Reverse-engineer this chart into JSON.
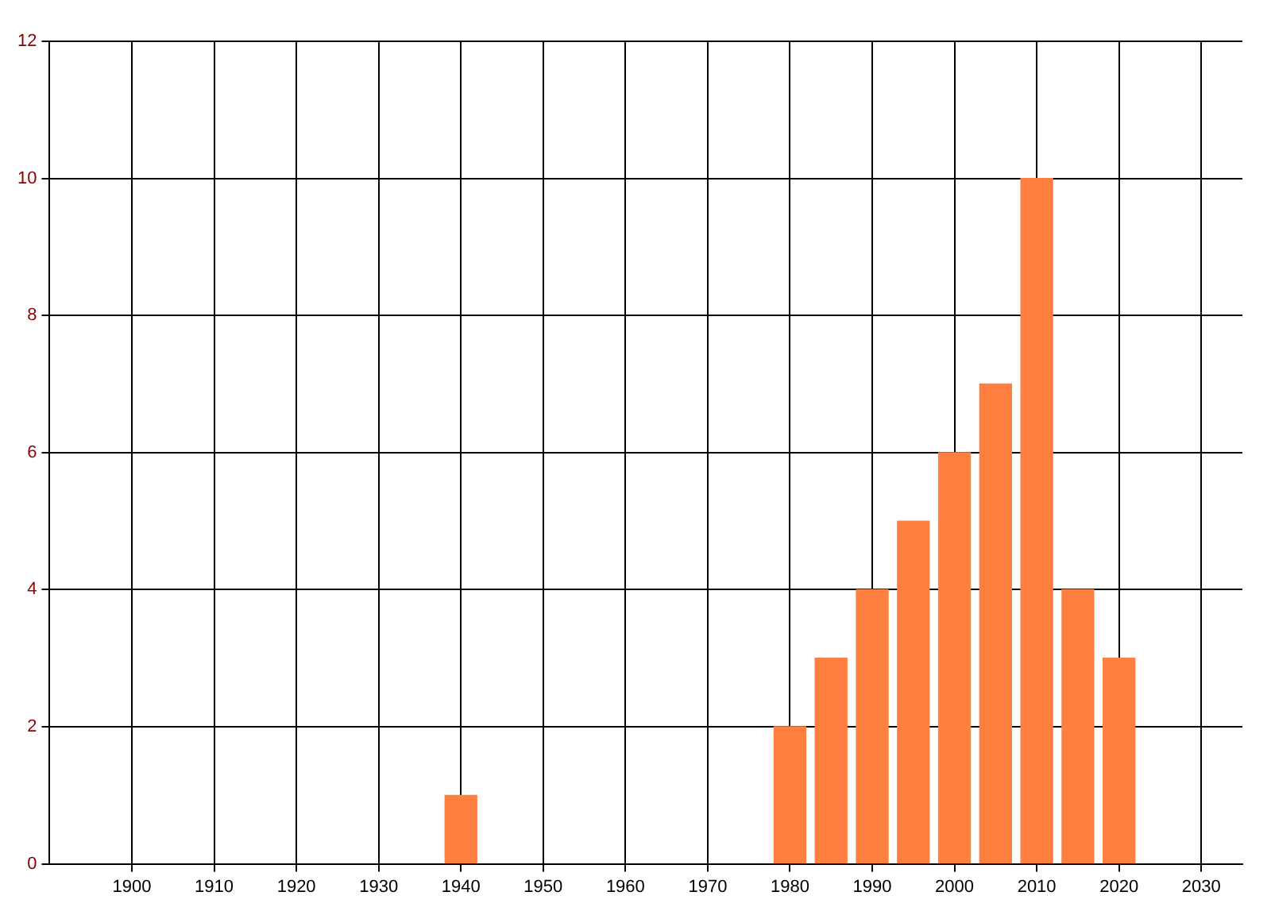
{
  "chart_data": {
    "type": "bar",
    "x": [
      1940,
      1980,
      1985,
      1990,
      1995,
      2000,
      2005,
      2010,
      2015,
      2020
    ],
    "values": [
      1,
      2,
      3,
      4,
      5,
      6,
      7,
      10,
      4,
      3
    ],
    "color": "#ff7f40",
    "xlim": [
      1890,
      2035
    ],
    "xticks": [
      1900,
      1910,
      1920,
      1930,
      1940,
      1950,
      1960,
      1970,
      1980,
      1990,
      2000,
      2010,
      2020,
      2030
    ],
    "ylim": [
      0,
      12
    ],
    "yticks": [
      0,
      2,
      4,
      6,
      8,
      10,
      12
    ],
    "grid": true
  }
}
